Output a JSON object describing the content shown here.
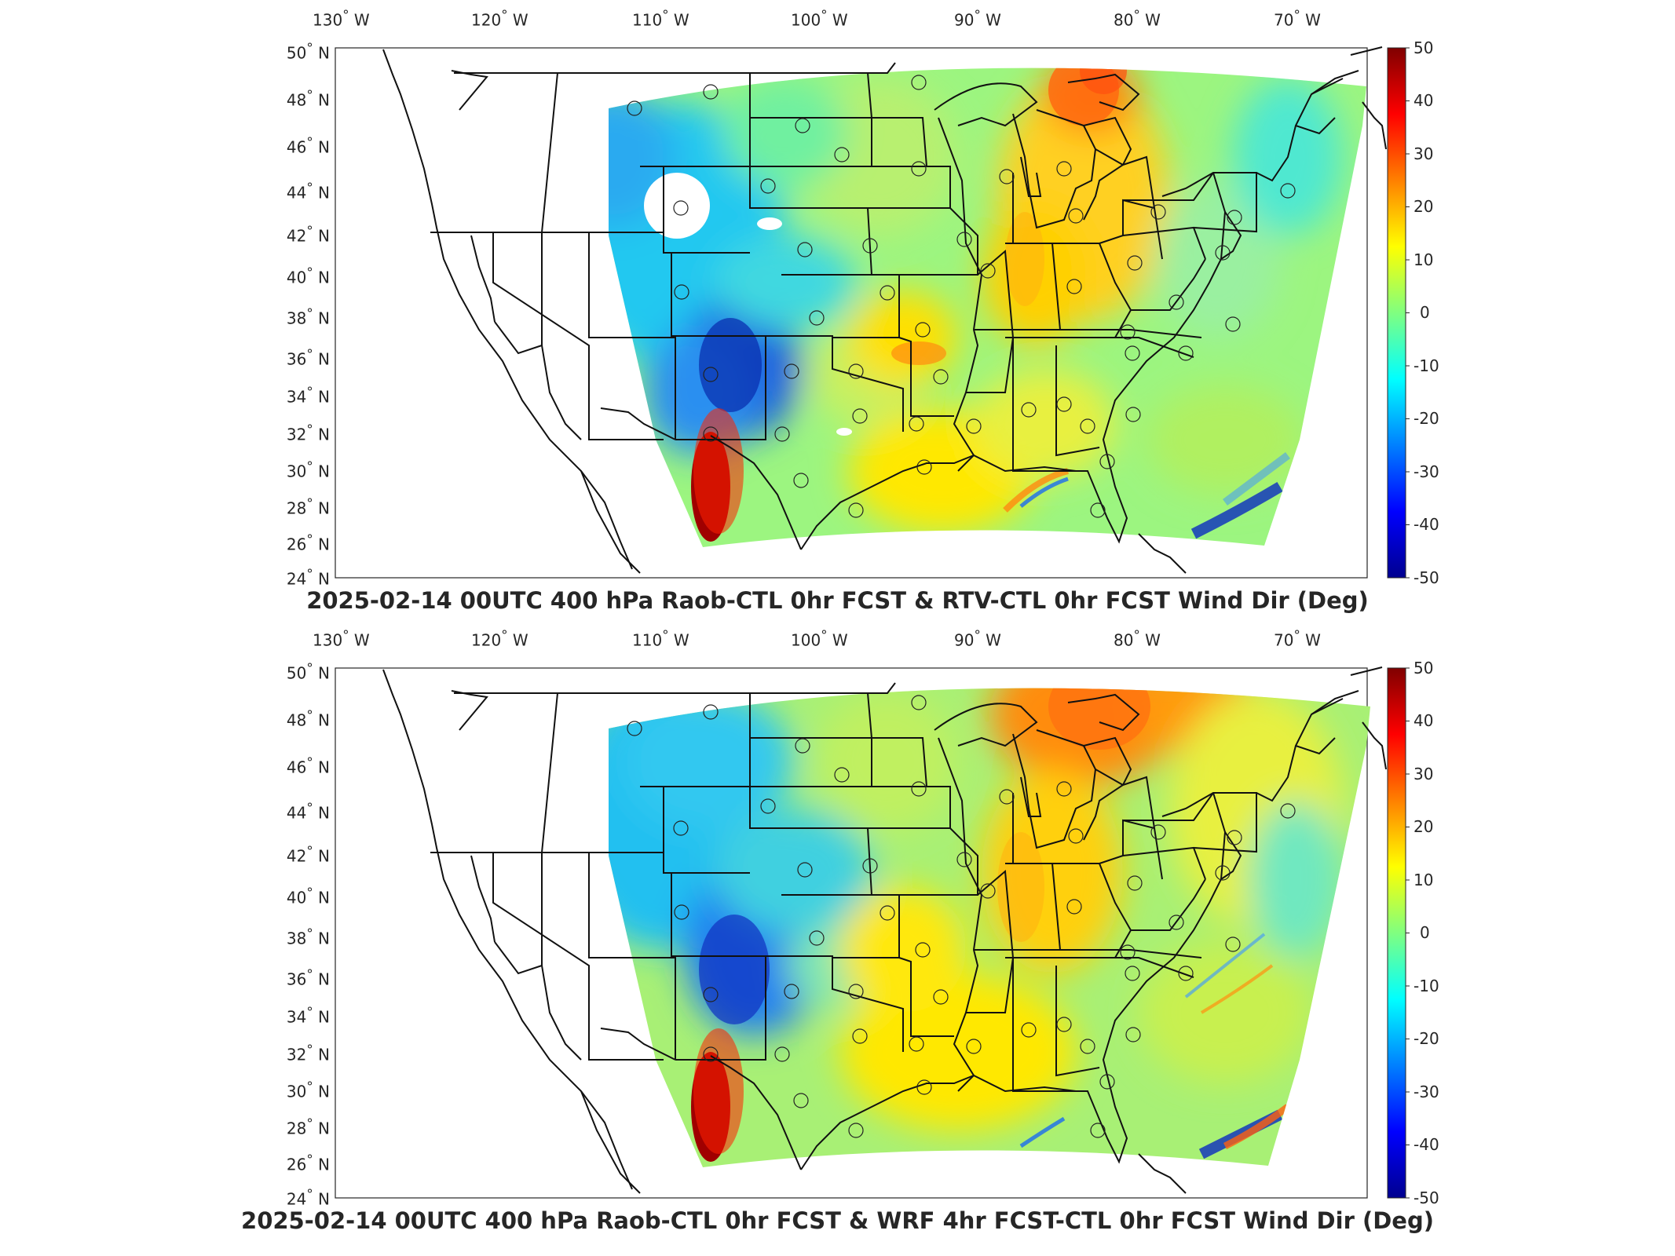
{
  "panels": [
    {
      "title": "2025-02-14 00UTC 400 hPa Raob-CTL 0hr FCST & RTV-CTL 0hr FCST Wind Dir (Deg)"
    },
    {
      "title": "2025-02-14 00UTC 400 hPa Raob-CTL 0hr FCST & WRF 4hr FCST-CTL 0hr FCST Wind Dir (Deg)"
    }
  ],
  "axes": {
    "lon_labels": [
      "130",
      "120",
      "110",
      "100",
      "90",
      "80",
      "70"
    ],
    "lon_suffix": "W",
    "lat_labels": [
      "50",
      "48",
      "46",
      "44",
      "42",
      "40",
      "38",
      "36",
      "34",
      "32",
      "30",
      "28",
      "26",
      "24"
    ],
    "lat_suffix": "N",
    "degree_symbol": "°"
  },
  "colorbar": {
    "ticks": [
      "50",
      "40",
      "30",
      "20",
      "10",
      "0",
      "-10",
      "-20",
      "-30",
      "-40",
      "-50"
    ],
    "range": [
      -50,
      50
    ],
    "colormap": [
      "#00008f",
      "#0000ff",
      "#0080ff",
      "#00ffff",
      "#80ff80",
      "#ffff00",
      "#ff8000",
      "#ff0000",
      "#800000"
    ]
  },
  "map_data": {
    "projection": "lambert-conic-like",
    "lon_range": [
      -132,
      -65
    ],
    "lat_range": [
      24,
      50
    ],
    "raob_station_marker": "circle"
  }
}
